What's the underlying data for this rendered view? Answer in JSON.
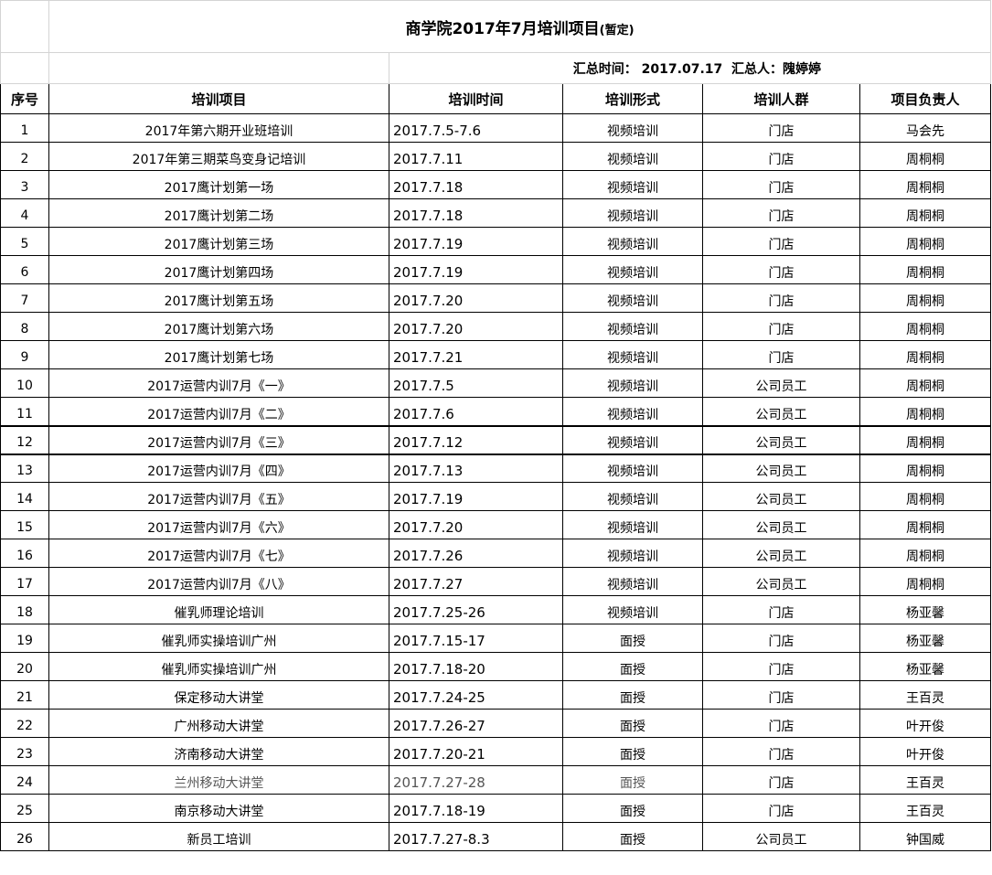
{
  "title": {
    "main": "商学院2017年7月培训项目",
    "suffix": "(暂定)"
  },
  "summary": {
    "time_label": "汇总时间：",
    "time_value": "2017.07.17",
    "person_label": "汇总人：",
    "person_value": "隗婷婷"
  },
  "headers": [
    "序号",
    "培训项目",
    "培训时间",
    "培训形式",
    "培训人群",
    "项目负责人"
  ],
  "rows": [
    [
      "1",
      "2017年第六期开业班培训",
      "2017.7.5-7.6",
      "视频培训",
      "门店",
      "马会先"
    ],
    [
      "2",
      "2017年第三期菜鸟变身记培训",
      "2017.7.11",
      "视频培训",
      "门店",
      "周桐桐"
    ],
    [
      "3",
      "2017鹰计划第一场",
      "2017.7.18",
      "视频培训",
      "门店",
      "周桐桐"
    ],
    [
      "4",
      "2017鹰计划第二场",
      "2017.7.18",
      "视频培训",
      "门店",
      "周桐桐"
    ],
    [
      "5",
      "2017鹰计划第三场",
      "2017.7.19",
      "视频培训",
      "门店",
      "周桐桐"
    ],
    [
      "6",
      "2017鹰计划第四场",
      "2017.7.19",
      "视频培训",
      "门店",
      "周桐桐"
    ],
    [
      "7",
      "2017鹰计划第五场",
      "2017.7.20",
      "视频培训",
      "门店",
      "周桐桐"
    ],
    [
      "8",
      "2017鹰计划第六场",
      "2017.7.20",
      "视频培训",
      "门店",
      "周桐桐"
    ],
    [
      "9",
      "2017鹰计划第七场",
      "2017.7.21",
      "视频培训",
      "门店",
      "周桐桐"
    ],
    [
      "10",
      "2017运营内训7月《一》",
      "2017.7.5",
      "视频培训",
      "公司员工",
      "周桐桐"
    ],
    [
      "11",
      "2017运营内训7月《二》",
      "2017.7.6",
      "视频培训",
      "公司员工",
      "周桐桐"
    ],
    [
      "12",
      "2017运营内训7月《三》",
      "2017.7.12",
      "视频培训",
      "公司员工",
      "周桐桐"
    ],
    [
      "13",
      "2017运营内训7月《四》",
      "2017.7.13",
      "视频培训",
      "公司员工",
      "周桐桐"
    ],
    [
      "14",
      "2017运营内训7月《五》",
      "2017.7.19",
      "视频培训",
      "公司员工",
      "周桐桐"
    ],
    [
      "15",
      "2017运营内训7月《六》",
      "2017.7.20",
      "视频培训",
      "公司员工",
      "周桐桐"
    ],
    [
      "16",
      "2017运营内训7月《七》",
      "2017.7.26",
      "视频培训",
      "公司员工",
      "周桐桐"
    ],
    [
      "17",
      "2017运营内训7月《八》",
      "2017.7.27",
      "视频培训",
      "公司员工",
      "周桐桐"
    ],
    [
      "18",
      "催乳师理论培训",
      "2017.7.25-26",
      "视频培训",
      "门店",
      "杨亚馨"
    ],
    [
      "19",
      "催乳师实操培训广州",
      "2017.7.15-17",
      "面授",
      "门店",
      "杨亚馨"
    ],
    [
      "20",
      "催乳师实操培训广州",
      "2017.7.18-20",
      "面授",
      "门店",
      "杨亚馨"
    ],
    [
      "21",
      "保定移动大讲堂",
      "2017.7.24-25",
      "面授",
      "门店",
      "王百灵"
    ],
    [
      "22",
      "广州移动大讲堂",
      "2017.7.26-27",
      "面授",
      "门店",
      "叶开俊"
    ],
    [
      "23",
      "济南移动大讲堂",
      "2017.7.20-21",
      "面授",
      "门店",
      "叶开俊"
    ],
    [
      "24",
      "兰州移动大讲堂",
      "2017.7.27-28",
      "面授",
      "门店",
      "王百灵"
    ],
    [
      "25",
      "南京移动大讲堂",
      "2017.7.18-19",
      "面授",
      "门店",
      "王百灵"
    ],
    [
      "26",
      "新员工培训",
      "2017.7.27-8.3",
      "面授",
      "公司员工",
      "钟国威"
    ]
  ]
}
